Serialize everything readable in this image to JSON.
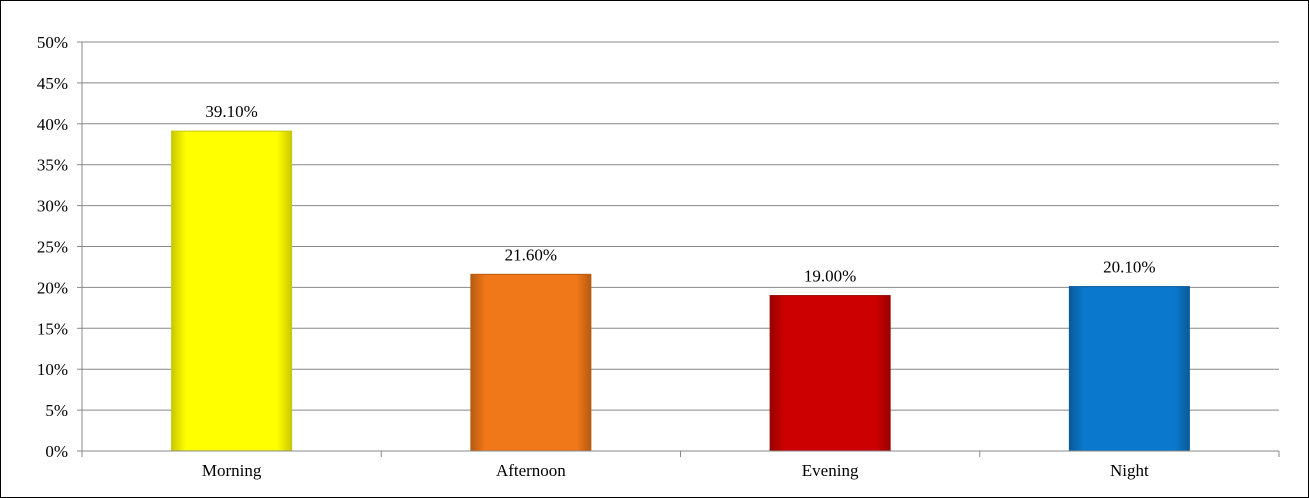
{
  "chart_data": {
    "type": "bar",
    "categories": [
      "Morning",
      "Afternoon",
      "Evening",
      "Night"
    ],
    "values": [
      39.1,
      21.6,
      19.0,
      20.1
    ],
    "data_labels": [
      "39.10%",
      "21.60%",
      "19.00%",
      "20.10%"
    ],
    "colors": [
      "#ffff00",
      "#f07818",
      "#cc0000",
      "#0a78cc"
    ],
    "edge_colors": [
      "#c8c800",
      "#b85a10",
      "#990000",
      "#0a5a99"
    ],
    "ylim": [
      0,
      50
    ],
    "yticks": [
      0,
      5,
      10,
      15,
      20,
      25,
      30,
      35,
      40,
      45,
      50
    ],
    "ytick_labels": [
      "0%",
      "5%",
      "10%",
      "15%",
      "20%",
      "25%",
      "30%",
      "35%",
      "40%",
      "45%",
      "50%"
    ],
    "title": "",
    "xlabel": "",
    "ylabel": "",
    "grid": true,
    "grid_color": "#888888",
    "legend": "none"
  }
}
